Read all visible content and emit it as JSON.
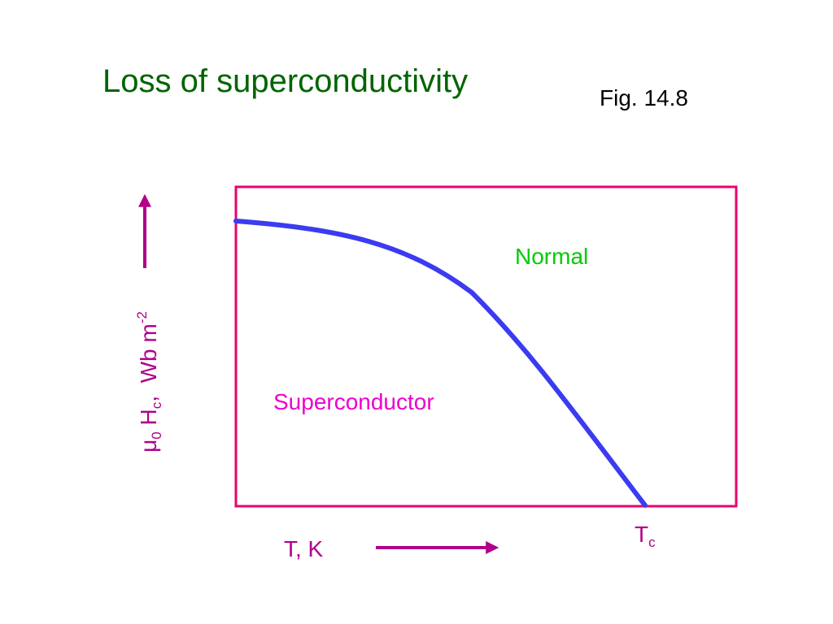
{
  "title": "Loss of superconductivity",
  "figure_ref": "Fig. 14.8",
  "regions": {
    "normal": "Normal",
    "superconductor": "Superconductor"
  },
  "axes": {
    "x_label": "T, K",
    "y_label": {
      "mu": "μ",
      "mu_sub": "0",
      "h": " H",
      "h_sub": "c",
      "units": ",  Wb m",
      "units_sup": "-2"
    },
    "tc_main": "T",
    "tc_sub": "c"
  },
  "colors": {
    "title": "#006400",
    "frame": "#e8006e",
    "curve": "#3b3bf0",
    "arrow": "#b0008a",
    "normal": "#00cc00",
    "superconductor": "#ee00cc"
  }
}
